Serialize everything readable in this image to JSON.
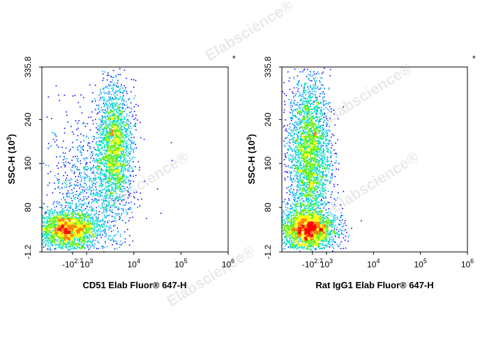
{
  "watermark": "Elabscience®",
  "marker": "*",
  "colors": {
    "density": [
      "#0000ff",
      "#00a0ff",
      "#00e0c0",
      "#60f000",
      "#ffff00",
      "#ff8000",
      "#ff0000"
    ]
  },
  "chart_data": [
    {
      "type": "scatter",
      "title": "",
      "xlabel": "CD51 Elab Fluor® 647-H",
      "ylabel": "SSC-H",
      "ylabel_unit_base": "10",
      "ylabel_unit_exp": "3",
      "x_scale": "log",
      "xlim": [
        -500,
        1000000
      ],
      "ylim": [
        -1.2,
        335.8
      ],
      "y_ticks": [
        "335.8",
        "240",
        "160",
        "80",
        "-1.2"
      ],
      "y_tick_values": [
        335.8,
        240,
        160,
        80,
        -1.2
      ],
      "x_tick_labels": [
        {
          "base": "-10",
          "exp": "2.7"
        },
        {
          "base": "10",
          "exp": "3"
        },
        {
          "base": "10",
          "exp": "4"
        },
        {
          "base": "10",
          "exp": "5"
        },
        {
          "base": "10",
          "exp": "6"
        }
      ],
      "populations": [
        {
          "name": "",
          "x_center": 350,
          "y_center": 42,
          "x_spread_decades": 0.35,
          "y_spread": 18,
          "weight": 0.42
        },
        {
          "name": "",
          "x_center": 3800,
          "y_center": 195,
          "x_spread_decades": 0.18,
          "y_spread": 55,
          "weight": 0.38
        },
        {
          "name": "",
          "x_center": 1200,
          "y_center": 110,
          "x_spread_decades": 0.45,
          "y_spread": 70,
          "weight": 0.2
        }
      ]
    },
    {
      "type": "scatter",
      "title": "",
      "xlabel": "Rat IgG1 Elab Fluor® 647-H",
      "ylabel": "SSC-H",
      "ylabel_unit_base": "10",
      "ylabel_unit_exp": "3",
      "x_scale": "log",
      "xlim": [
        -500,
        1000000
      ],
      "ylim": [
        -1.2,
        335.8
      ],
      "y_ticks": [
        "335.8",
        "240",
        "160",
        "80",
        "-1.2"
      ],
      "y_tick_values": [
        335.8,
        240,
        160,
        80,
        -1.2
      ],
      "x_tick_labels": [
        {
          "base": "-10",
          "exp": "2.7"
        },
        {
          "base": "10",
          "exp": "3"
        },
        {
          "base": "10",
          "exp": "4"
        },
        {
          "base": "10",
          "exp": "5"
        },
        {
          "base": "10",
          "exp": "6"
        }
      ],
      "populations": [
        {
          "name": "",
          "x_center": 380,
          "y_center": 42,
          "x_spread_decades": 0.3,
          "y_spread": 18,
          "weight": 0.45
        },
        {
          "name": "",
          "x_center": 420,
          "y_center": 180,
          "x_spread_decades": 0.22,
          "y_spread": 70,
          "weight": 0.55
        }
      ]
    }
  ]
}
